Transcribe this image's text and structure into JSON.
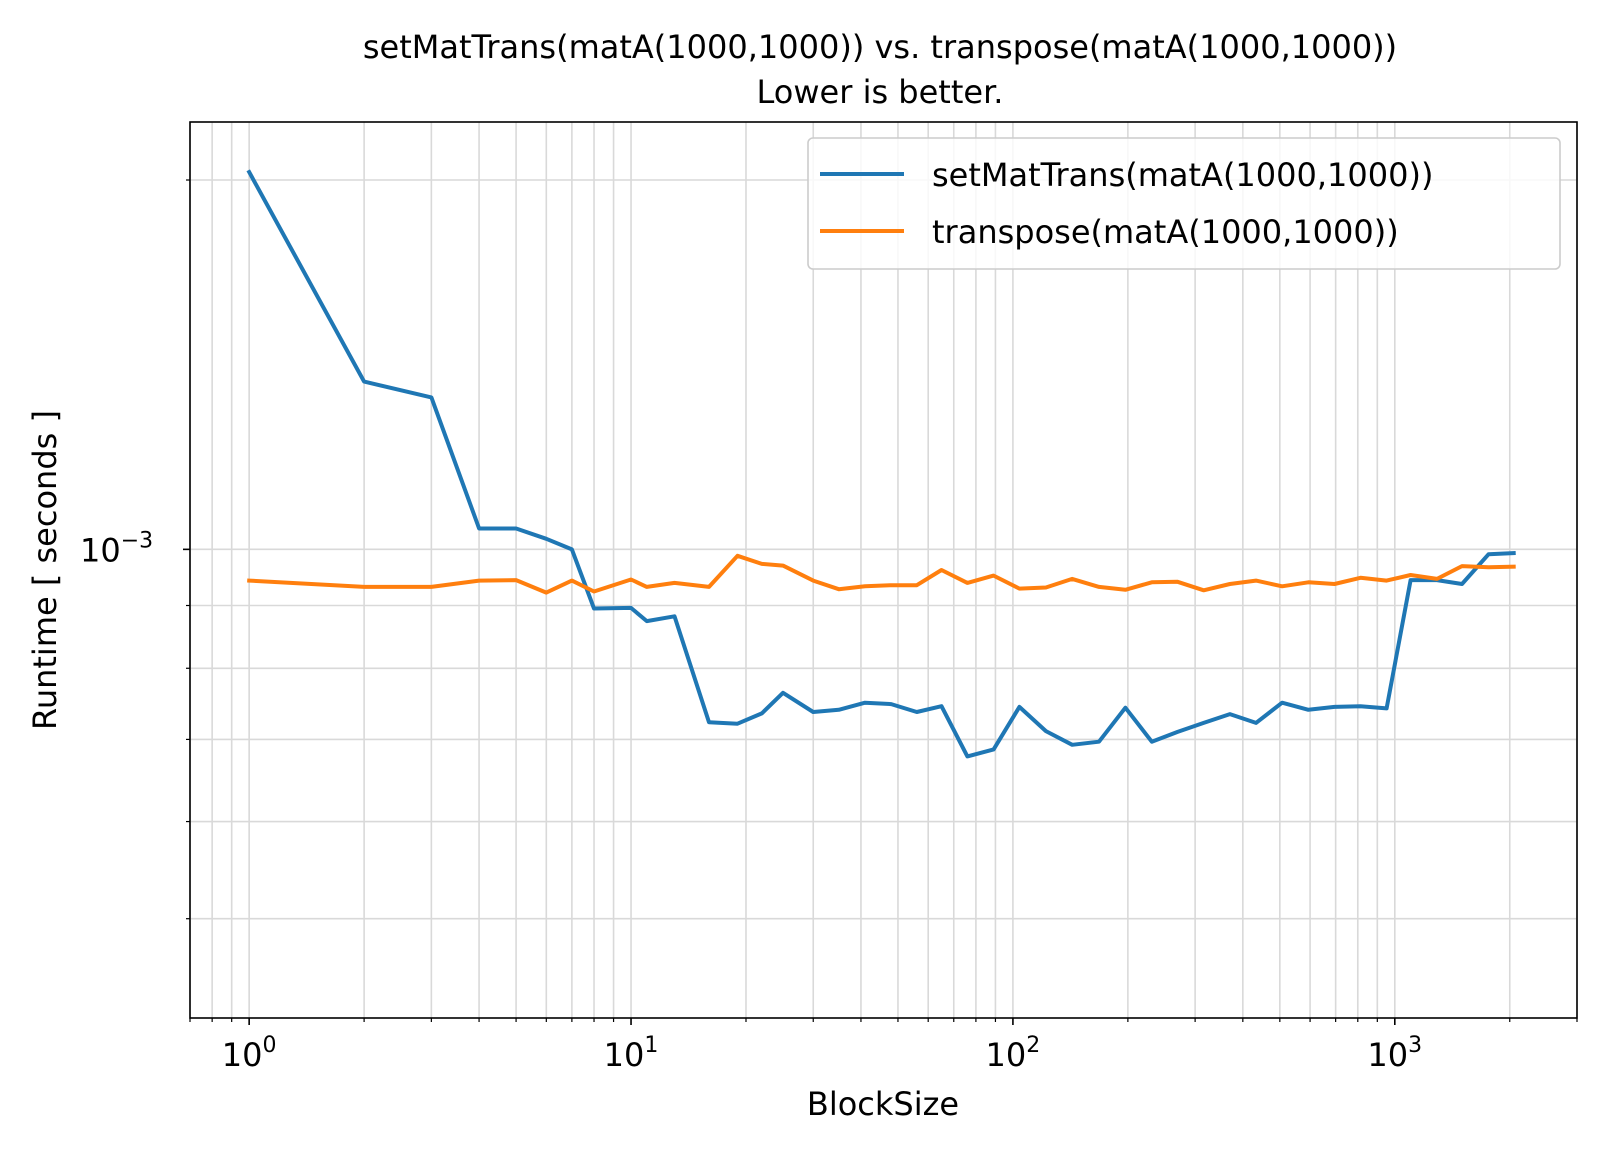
{
  "chart_data": {
    "type": "line",
    "title": "setMatTrans(matA(1000,1000)) vs. transpose(matA(1000,1000))",
    "subtitle": "Lower is better.",
    "xlabel": "BlockSize",
    "ylabel": "Runtime [ seconds ]",
    "xscale": "log",
    "yscale": "log",
    "xlim": [
      0.7,
      3000
    ],
    "ylim": [
      0.000415,
      0.00223
    ],
    "grid": true,
    "legend_position": "top-right",
    "x_ticks": [
      {
        "value": 1,
        "base": "10",
        "exp": "0"
      },
      {
        "value": 10,
        "base": "10",
        "exp": "1"
      },
      {
        "value": 100,
        "base": "10",
        "exp": "2"
      },
      {
        "value": 1000,
        "base": "10",
        "exp": "3"
      }
    ],
    "y_ticks": [
      {
        "value": 0.001,
        "base": "10",
        "exp": "−3"
      }
    ],
    "colors": {
      "setMatTrans": "#1f77b4",
      "transpose": "#ff7f0e",
      "grid": "#d9d9d9"
    },
    "series": [
      {
        "name": "setMatTrans(matA(1000,1000))",
        "color": "#1f77b4",
        "x": [
          1,
          2,
          3,
          4,
          5,
          6,
          7,
          8,
          10,
          11,
          13,
          16,
          19,
          22,
          25,
          30,
          35,
          41,
          48,
          56,
          65,
          76,
          89,
          104,
          122,
          143,
          168,
          197,
          231,
          270,
          316,
          370,
          433,
          507,
          594,
          695,
          813,
          952,
          1100,
          1290,
          1500,
          1760,
          2048
        ],
        "values": [
          0.00203,
          0.00137,
          0.00133,
          0.00104,
          0.00104,
          0.00102,
          0.001,
          0.000895,
          0.000896,
          0.000874,
          0.000882,
          0.000723,
          0.000721,
          0.000735,
          0.000764,
          0.000737,
          0.00074,
          0.00075,
          0.000748,
          0.000737,
          0.000745,
          0.000678,
          0.000687,
          0.000744,
          0.000711,
          0.000693,
          0.000697,
          0.000743,
          0.000697,
          0.00071,
          0.000722,
          0.000734,
          0.000722,
          0.00075,
          0.00074,
          0.000744,
          0.000745,
          0.000742,
          0.000944,
          0.000944,
          0.000937,
          0.000991,
          0.000993
        ]
      },
      {
        "name": "transpose(matA(1000,1000))",
        "color": "#ff7f0e",
        "x": [
          1,
          2,
          3,
          4,
          5,
          6,
          7,
          8,
          10,
          11,
          13,
          16,
          19,
          22,
          25,
          30,
          35,
          41,
          48,
          56,
          65,
          76,
          89,
          104,
          122,
          143,
          168,
          197,
          231,
          270,
          316,
          370,
          433,
          507,
          594,
          695,
          813,
          952,
          1100,
          1290,
          1500,
          1760,
          2048
        ],
        "values": [
          0.000943,
          0.000932,
          0.000932,
          0.000943,
          0.000944,
          0.000922,
          0.000943,
          0.000924,
          0.000945,
          0.000932,
          0.000939,
          0.000932,
          0.000988,
          0.000973,
          0.00097,
          0.000943,
          0.000928,
          0.000933,
          0.000935,
          0.000935,
          0.000962,
          0.000939,
          0.000952,
          0.000929,
          0.000931,
          0.000946,
          0.000932,
          0.000927,
          0.00094,
          0.000941,
          0.000926,
          0.000937,
          0.000943,
          0.000933,
          0.00094,
          0.000937,
          0.000948,
          0.000943,
          0.000953,
          0.000946,
          0.000969,
          0.000967,
          0.000968
        ]
      }
    ]
  }
}
